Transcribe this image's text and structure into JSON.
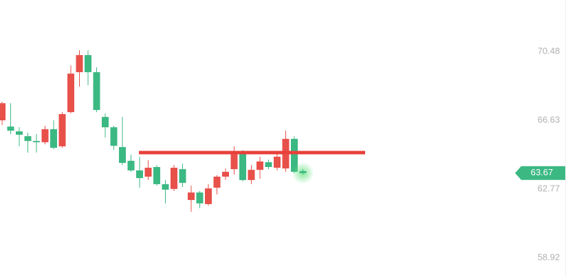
{
  "chart_data": {
    "type": "candlestick",
    "up_color": "#e8504a",
    "down_color": "#3cb883",
    "ylim": [
      57.84,
      73.38
    ],
    "yticks": [
      58.92,
      62.77,
      66.63,
      70.48
    ],
    "grid": false,
    "current_price": 63.67,
    "current_price_color": "#3cb883",
    "level": {
      "value": 64.82,
      "color": "#e8403a"
    },
    "candles": [
      {
        "open": 66.63,
        "high": 67.67,
        "low": 66.36,
        "close": 67.59
      },
      {
        "open": 66.28,
        "high": 67.59,
        "low": 65.86,
        "close": 66.05
      },
      {
        "open": 66.01,
        "high": 66.24,
        "low": 65.17,
        "close": 65.82
      },
      {
        "open": 65.74,
        "high": 65.94,
        "low": 64.82,
        "close": 65.47
      },
      {
        "open": 65.47,
        "high": 65.86,
        "low": 64.82,
        "close": 65.4
      },
      {
        "open": 65.4,
        "high": 66.32,
        "low": 65.28,
        "close": 66.13
      },
      {
        "open": 66.13,
        "high": 66.63,
        "low": 65.01,
        "close": 65.09
      },
      {
        "open": 65.17,
        "high": 67.09,
        "low": 65.09,
        "close": 66.98
      },
      {
        "open": 67.09,
        "high": 69.71,
        "low": 67.02,
        "close": 69.25
      },
      {
        "open": 69.33,
        "high": 70.56,
        "low": 68.52,
        "close": 70.29
      },
      {
        "open": 70.29,
        "high": 70.56,
        "low": 68.6,
        "close": 69.33
      },
      {
        "open": 69.33,
        "high": 69.6,
        "low": 67.09,
        "close": 67.21
      },
      {
        "open": 66.82,
        "high": 67.02,
        "low": 65.67,
        "close": 66.24
      },
      {
        "open": 66.24,
        "high": 66.32,
        "low": 64.97,
        "close": 65.2
      },
      {
        "open": 65.13,
        "high": 66.82,
        "low": 64.12,
        "close": 64.24
      },
      {
        "open": 64.36,
        "high": 64.7,
        "low": 63.74,
        "close": 63.82
      },
      {
        "open": 63.82,
        "high": 64.59,
        "low": 62.85,
        "close": 63.39
      },
      {
        "open": 63.47,
        "high": 64.39,
        "low": 63.28,
        "close": 63.97
      },
      {
        "open": 64.01,
        "high": 64.12,
        "low": 62.97,
        "close": 63.05
      },
      {
        "open": 63.05,
        "high": 63.28,
        "low": 61.97,
        "close": 62.74
      },
      {
        "open": 62.78,
        "high": 64.12,
        "low": 62.66,
        "close": 63.97
      },
      {
        "open": 63.89,
        "high": 64.2,
        "low": 62.89,
        "close": 63.12
      },
      {
        "open": 62.16,
        "high": 62.97,
        "low": 61.5,
        "close": 62.58
      },
      {
        "open": 62.58,
        "high": 62.66,
        "low": 61.7,
        "close": 61.97
      },
      {
        "open": 61.93,
        "high": 63.05,
        "low": 61.85,
        "close": 62.81
      },
      {
        "open": 62.85,
        "high": 63.55,
        "low": 62.47,
        "close": 63.47
      },
      {
        "open": 63.47,
        "high": 63.93,
        "low": 63.28,
        "close": 63.74
      },
      {
        "open": 63.89,
        "high": 65.17,
        "low": 63.59,
        "close": 64.82
      },
      {
        "open": 64.82,
        "high": 64.97,
        "low": 63.2,
        "close": 63.28
      },
      {
        "open": 63.28,
        "high": 64.12,
        "low": 63.05,
        "close": 63.85
      },
      {
        "open": 63.85,
        "high": 64.59,
        "low": 63.35,
        "close": 64.32
      },
      {
        "open": 64.28,
        "high": 64.43,
        "low": 63.89,
        "close": 64.01
      },
      {
        "open": 63.97,
        "high": 64.9,
        "low": 63.82,
        "close": 64.59
      },
      {
        "open": 63.93,
        "high": 66.05,
        "low": 63.74,
        "close": 65.59
      },
      {
        "open": 65.59,
        "high": 65.74,
        "low": 63.66,
        "close": 63.74
      },
      {
        "open": 63.78,
        "high": 63.89,
        "low": 63.59,
        "close": 63.67
      }
    ]
  }
}
